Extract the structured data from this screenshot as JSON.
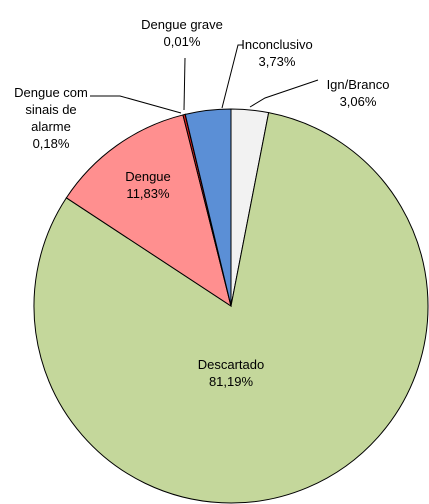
{
  "chart_data": {
    "type": "pie",
    "categories": [
      "Ign/Branco",
      "Descartado",
      "Dengue",
      "Dengue com sinais de alarme",
      "Dengue grave",
      "Inconclusivo"
    ],
    "values": [
      3.06,
      81.19,
      11.83,
      0.18,
      0.01,
      3.73
    ],
    "value_labels": [
      "3,06%",
      "81,19%",
      "11,83%",
      "0,18%",
      "0,01%",
      "3,73%"
    ],
    "colors": [
      "#f2f2f2",
      "#c4d79b",
      "#ff8f8f",
      "#e02020",
      "#7a2020",
      "#5b8fd6"
    ]
  }
}
